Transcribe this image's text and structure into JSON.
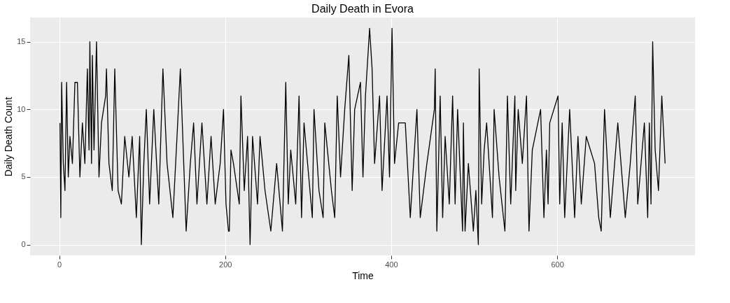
{
  "chart_data": {
    "type": "line",
    "title": "Daily Death in Evora",
    "xlabel": "Time",
    "ylabel": "Daily Death Count",
    "x": [
      1,
      2,
      3,
      5,
      7,
      9,
      11,
      13,
      16,
      19,
      22,
      25,
      28,
      31,
      34,
      36,
      37,
      39,
      40,
      42,
      45,
      48,
      51,
      56,
      57,
      60,
      64,
      67,
      71,
      75,
      79,
      84,
      88,
      93,
      97,
      99,
      102,
      105,
      109,
      114,
      120,
      125,
      130,
      137,
      142,
      146,
      153,
      158,
      162,
      166,
      172,
      178,
      183,
      188,
      194,
      198,
      201,
      204,
      205,
      207,
      210,
      217,
      219,
      223,
      227,
      230,
      233,
      239,
      242,
      248,
      255,
      262,
      269,
      273,
      276,
      279,
      285,
      289,
      292,
      295,
      305,
      307,
      313,
      318,
      320,
      328,
      332,
      335,
      339,
      344,
      349,
      353,
      356,
      363,
      366,
      369,
      374,
      377,
      380,
      386,
      389,
      395,
      398,
      401,
      404,
      409,
      417,
      423,
      431,
      435,
      443,
      452,
      453,
      455,
      459,
      462,
      465,
      470,
      474,
      477,
      480,
      486,
      487,
      489,
      493,
      499,
      502,
      505,
      506,
      509,
      512,
      515,
      522,
      524,
      530,
      537,
      540,
      544,
      549,
      550,
      553,
      558,
      563,
      566,
      570,
      580,
      584,
      587,
      589,
      591,
      601,
      603,
      606,
      609,
      615,
      621,
      625,
      629,
      635,
      645,
      650,
      653,
      657,
      664,
      673,
      682,
      688,
      694,
      697,
      705,
      709,
      711,
      713,
      715,
      718,
      722,
      726,
      730
    ],
    "series": [
      {
        "color": "#000000",
        "values": [
          9,
          2,
          12,
          6,
          4,
          12,
          5,
          8,
          6,
          12,
          12,
          5,
          9,
          6,
          13,
          7,
          15,
          6,
          14,
          7,
          15,
          5,
          9,
          11,
          13,
          6,
          4,
          13,
          4,
          3,
          8,
          5,
          8,
          2,
          8,
          0,
          6,
          10,
          3,
          10,
          3,
          13,
          6,
          2,
          8,
          13,
          1,
          6,
          9,
          3,
          9,
          3,
          8,
          3,
          6,
          10,
          3,
          1,
          1,
          7,
          6,
          3,
          11,
          4,
          8,
          0,
          8,
          3,
          8,
          4,
          1,
          6,
          1,
          12,
          3,
          7,
          3,
          11,
          2,
          9,
          2,
          10,
          4,
          2,
          9,
          4,
          2,
          11,
          5,
          10,
          14,
          4,
          10,
          12,
          5,
          11,
          16,
          13,
          6,
          11,
          4,
          11,
          5,
          16,
          6,
          9,
          9,
          2,
          10,
          2,
          6,
          10,
          13,
          1,
          11,
          2,
          8,
          3,
          11,
          3,
          10,
          1,
          9,
          1,
          6,
          1,
          4,
          0,
          13,
          3,
          7,
          9,
          2,
          10,
          5,
          1,
          11,
          3,
          11,
          4,
          10,
          6,
          11,
          1,
          7,
          10,
          2,
          7,
          3,
          9,
          11,
          3,
          9,
          2,
          10,
          2,
          8,
          3,
          8,
          6,
          2,
          1,
          10,
          2,
          9,
          2,
          6,
          11,
          3,
          9,
          2,
          9,
          3,
          15,
          7,
          4,
          11,
          6
        ]
      }
    ],
    "xlim": [
      -35,
      766
    ],
    "xticks": [
      0,
      200,
      400,
      600
    ],
    "ylim": [
      -0.8,
      16.8
    ],
    "yticks": [
      0,
      5,
      10,
      15
    ],
    "grid": true,
    "legend": false,
    "marker": "none",
    "line_style": "solid"
  }
}
